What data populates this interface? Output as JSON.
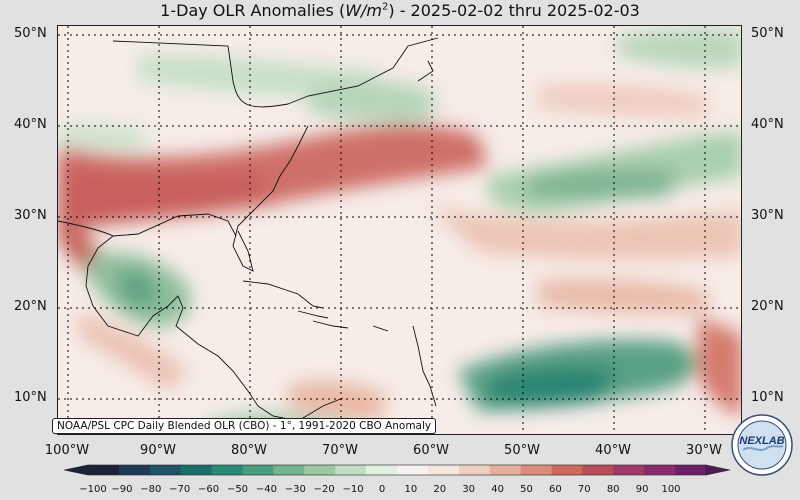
{
  "title": {
    "prefix": "1-Day OLR Anomalies (",
    "unit_base": "W/m",
    "unit_exp": "2",
    "suffix": ") - 2025-02-02 thru 2025-02-03"
  },
  "lat_labels": [
    "50°N",
    "40°N",
    "30°N",
    "20°N",
    "10°N"
  ],
  "lon_labels": [
    "100°W",
    "90°W",
    "80°W",
    "70°W",
    "60°W",
    "50°W",
    "40°W",
    "30°W"
  ],
  "credit": "NOAA/PSL CPC Daily Blended OLR (CBO) - 1°, 1991-2020 CBO Anomaly",
  "colorbar": {
    "ticks": [
      "−100",
      "−90",
      "−80",
      "−70",
      "−60",
      "−50",
      "−40",
      "−30",
      "−20",
      "−10",
      "0",
      "10",
      "20",
      "30",
      "40",
      "50",
      "60",
      "70",
      "80",
      "90",
      "100"
    ],
    "colors": [
      "#1a2238",
      "#1f3a55",
      "#1e5466",
      "#1b6e6c",
      "#2a8a74",
      "#4a9e7e",
      "#73b38e",
      "#9cc8a4",
      "#c2ddc3",
      "#e4efe4",
      "#f7f3ef",
      "#f6e7de",
      "#efcfc0",
      "#e6b09f",
      "#da8d7c",
      "#cd6a60",
      "#b84d5a",
      "#a23a66",
      "#8a2b6e",
      "#6d2168",
      "#4f1a55"
    ]
  },
  "logo_text": "NEXLAB",
  "colors": {
    "background": "#e1e1e1",
    "positive": "#cd6a60",
    "negative": "#2a8a74"
  }
}
